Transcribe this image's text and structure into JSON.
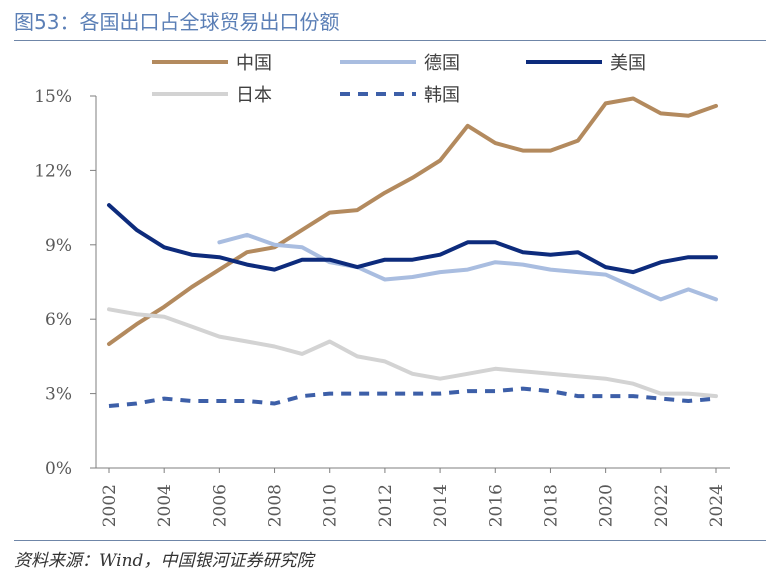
{
  "figure": {
    "title": "图53：各国出口占全球贸易出口份额",
    "source": "资料来源：Wind，中国银河证券研究院"
  },
  "chart_data": {
    "type": "line",
    "x": [
      2002,
      2003,
      2004,
      2005,
      2006,
      2007,
      2008,
      2009,
      2010,
      2011,
      2012,
      2013,
      2014,
      2015,
      2016,
      2017,
      2018,
      2019,
      2020,
      2021,
      2022,
      2023,
      2024
    ],
    "xticks": [
      "2002",
      "2004",
      "2006",
      "2008",
      "2010",
      "2012",
      "2014",
      "2016",
      "2018",
      "2020",
      "2022",
      "2024"
    ],
    "ylim": [
      0,
      15
    ],
    "yticks": [
      "0%",
      "3%",
      "6%",
      "9%",
      "12%",
      "15%"
    ],
    "legend_position": "top",
    "series": [
      {
        "name": "中国",
        "color": "#b38a5e",
        "dashed": false,
        "values": [
          5.0,
          5.8,
          6.5,
          7.3,
          8.0,
          8.7,
          8.9,
          9.6,
          10.3,
          10.4,
          11.1,
          11.7,
          12.4,
          13.8,
          13.1,
          12.8,
          12.8,
          13.2,
          14.7,
          14.9,
          14.3,
          14.2,
          14.6
        ]
      },
      {
        "name": "德国",
        "color": "#a9bde0",
        "dashed": false,
        "values": [
          null,
          null,
          null,
          null,
          9.1,
          9.4,
          9.0,
          8.9,
          8.3,
          8.1,
          7.6,
          7.7,
          7.9,
          8.0,
          8.3,
          8.2,
          8.0,
          7.9,
          7.8,
          7.3,
          6.8,
          7.2,
          6.8
        ]
      },
      {
        "name": "美国",
        "color": "#0d2b7c",
        "dashed": false,
        "values": [
          10.6,
          9.6,
          8.9,
          8.6,
          8.5,
          8.2,
          8.0,
          8.4,
          8.4,
          8.1,
          8.4,
          8.4,
          8.6,
          9.1,
          9.1,
          8.7,
          8.6,
          8.7,
          8.1,
          7.9,
          8.3,
          8.5,
          8.5
        ]
      },
      {
        "name": "日本",
        "color": "#d3d3d3",
        "dashed": false,
        "values": [
          6.4,
          6.2,
          6.1,
          5.7,
          5.3,
          5.1,
          4.9,
          4.6,
          5.1,
          4.5,
          4.3,
          3.8,
          3.6,
          3.8,
          4.0,
          3.9,
          3.8,
          3.7,
          3.6,
          3.4,
          3.0,
          3.0,
          2.9
        ]
      },
      {
        "name": "韩国",
        "color": "#3d5fa8",
        "dashed": true,
        "values": [
          2.5,
          2.6,
          2.8,
          2.7,
          2.7,
          2.7,
          2.6,
          2.9,
          3.0,
          3.0,
          3.0,
          3.0,
          3.0,
          3.1,
          3.1,
          3.2,
          3.1,
          2.9,
          2.9,
          2.9,
          2.8,
          2.7,
          2.8
        ]
      }
    ]
  }
}
